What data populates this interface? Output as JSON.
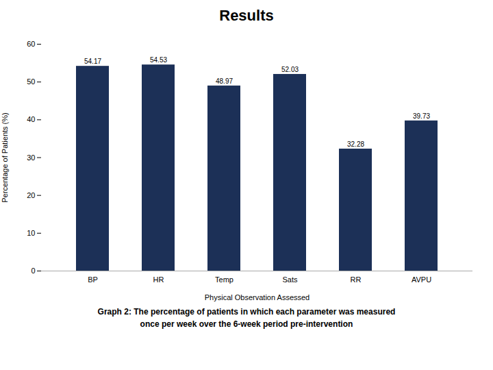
{
  "chart_data": {
    "type": "bar",
    "title": "Results",
    "categories": [
      "BP",
      "HR",
      "Temp",
      "Sats",
      "RR",
      "AVPU"
    ],
    "values": [
      54.17,
      54.53,
      48.97,
      52.03,
      32.28,
      39.73
    ],
    "color": "#1C3057",
    "xlabel": "Physical Observation Assessed",
    "ylabel": "Percentage of Patients (%)",
    "ylim": [
      0,
      60
    ],
    "yticks": [
      0,
      10,
      20,
      30,
      40,
      50,
      60
    ],
    "grid": false,
    "data_labels": true,
    "caption": [
      "Graph 2: The percentage of patients in which each parameter was measured",
      "once per week over the 6-week period pre-intervention"
    ]
  }
}
